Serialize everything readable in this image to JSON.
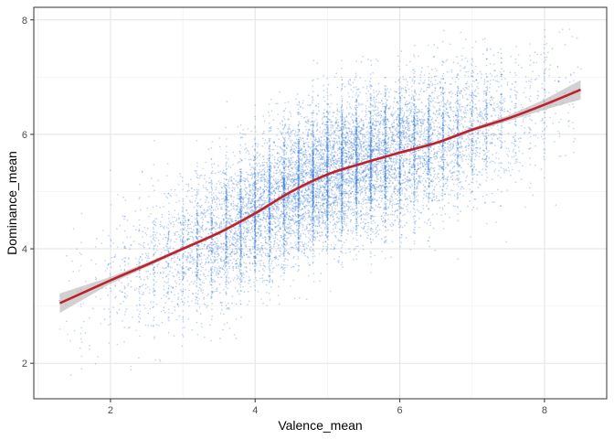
{
  "chart_data": {
    "type": "scatter",
    "title": "",
    "xlabel": "Valence_mean",
    "ylabel": "Dominance_mean",
    "xlim": [
      0.94,
      8.86
    ],
    "ylim": [
      1.38,
      8.22
    ],
    "x_ticks": [
      2,
      4,
      6,
      8
    ],
    "y_ticks": [
      2,
      4,
      6,
      8
    ],
    "x_tick_labels": [
      "2",
      "4",
      "6",
      "8"
    ],
    "y_tick_labels": [
      "2",
      "4",
      "6",
      "8"
    ],
    "grid": true,
    "legend": "none",
    "point_color": "#3a7bd5",
    "smooth_line_color": "#c0202a",
    "confidence_band_color": "#b3b3b3",
    "series": [
      {
        "type": "scatter",
        "point_count": 13000,
        "x_range": [
          1.26,
          8.53
        ],
        "y_range": [
          1.7,
          7.9
        ],
        "mean_x": 5.06,
        "mean_y": 5.1,
        "correlation": 0.72
      },
      {
        "type": "smooth",
        "x": [
          1.3,
          2.0,
          2.5,
          3.0,
          3.5,
          4.0,
          4.5,
          5.0,
          5.5,
          6.0,
          6.5,
          7.0,
          7.5,
          8.0,
          8.5
        ],
        "y": [
          3.05,
          3.45,
          3.72,
          4.0,
          4.28,
          4.62,
          5.0,
          5.3,
          5.5,
          5.68,
          5.85,
          6.08,
          6.28,
          6.52,
          6.78
        ],
        "ci_halfwidth": [
          0.17,
          0.06,
          0.04,
          0.03,
          0.03,
          0.03,
          0.03,
          0.02,
          0.02,
          0.02,
          0.02,
          0.03,
          0.05,
          0.09,
          0.17
        ]
      }
    ]
  }
}
